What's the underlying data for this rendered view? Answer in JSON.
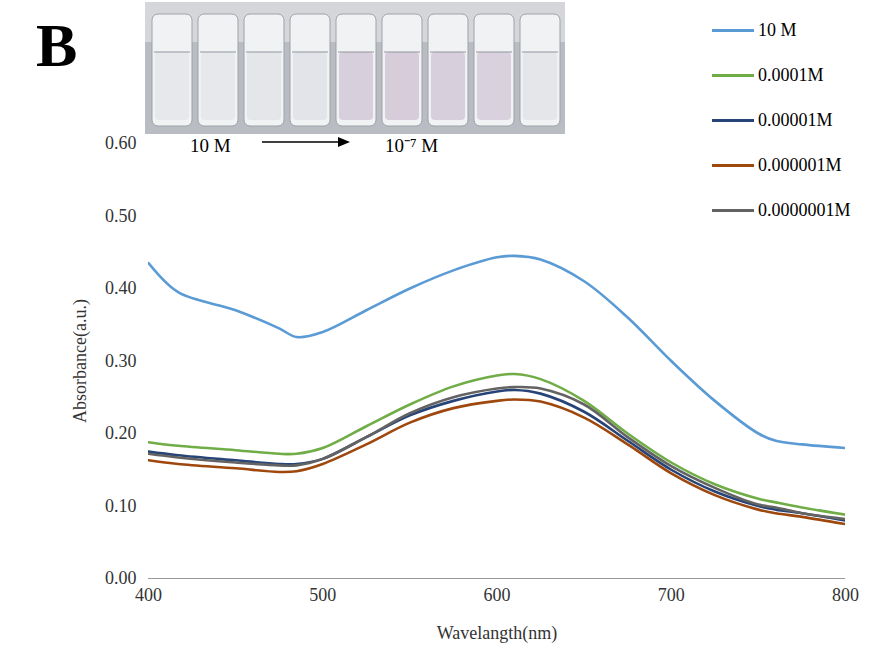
{
  "chart_data": {
    "type": "line",
    "panel_label": "B",
    "x_label": "Wavelangth(nm)",
    "y_label": "Absorbance(a.u.)",
    "annotations": [
      "10 M",
      "10⁻⁷ M"
    ],
    "x": [
      400,
      417,
      450,
      475,
      485,
      500,
      525,
      550,
      575,
      600,
      610,
      625,
      650,
      675,
      700,
      725,
      750,
      760,
      775,
      800
    ],
    "series": [
      {
        "name": "10 M",
        "color": "#5b9bd5",
        "values": [
          0.435,
          0.395,
          0.37,
          0.345,
          0.333,
          0.34,
          0.37,
          0.4,
          0.425,
          0.443,
          0.445,
          0.44,
          0.41,
          0.36,
          0.3,
          0.245,
          0.2,
          0.19,
          0.185,
          0.18
        ]
      },
      {
        "name": "0.0001M",
        "color": "#70ad47",
        "values": [
          0.188,
          0.183,
          0.177,
          0.172,
          0.172,
          0.18,
          0.21,
          0.24,
          0.265,
          0.28,
          0.282,
          0.275,
          0.245,
          0.2,
          0.16,
          0.13,
          0.11,
          0.105,
          0.098,
          0.088
        ]
      },
      {
        "name": "0.00001M",
        "color": "#264478",
        "values": [
          0.175,
          0.17,
          0.163,
          0.158,
          0.158,
          0.165,
          0.195,
          0.225,
          0.245,
          0.258,
          0.26,
          0.255,
          0.23,
          0.19,
          0.15,
          0.12,
          0.1,
          0.095,
          0.09,
          0.08
        ]
      },
      {
        "name": "0.000001M",
        "color": "#9e480e",
        "values": [
          0.163,
          0.158,
          0.152,
          0.147,
          0.148,
          0.158,
          0.185,
          0.215,
          0.235,
          0.245,
          0.247,
          0.244,
          0.222,
          0.185,
          0.145,
          0.115,
          0.095,
          0.09,
          0.085,
          0.075
        ]
      },
      {
        "name": "0.0000001M",
        "color": "#636363",
        "values": [
          0.172,
          0.167,
          0.16,
          0.156,
          0.156,
          0.165,
          0.195,
          0.228,
          0.25,
          0.262,
          0.264,
          0.262,
          0.24,
          0.195,
          0.155,
          0.125,
          0.102,
          0.098,
          0.09,
          0.082
        ]
      }
    ],
    "xlim": [
      400,
      800
    ],
    "xticks": [
      400,
      500,
      600,
      700,
      800
    ],
    "ylim": [
      0,
      0.6
    ],
    "yticks": [
      0,
      0.1,
      0.2,
      0.3,
      0.4,
      0.5,
      0.6
    ],
    "grid": false,
    "legend": "top-right"
  }
}
